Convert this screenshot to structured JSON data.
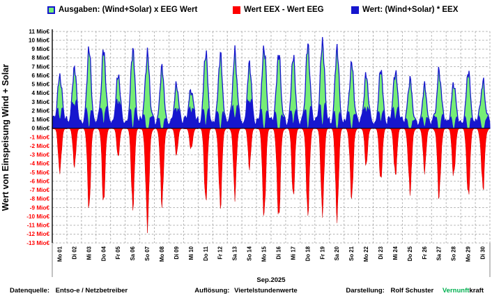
{
  "legend": [
    {
      "label": "Ausgaben: (Wind+Solar) x EEG Wert",
      "color": "#76EE76",
      "border": "#1616CE"
    },
    {
      "label": "Wert EEX - Wert EEG",
      "color": "#FE0000",
      "border": "#FE0000"
    },
    {
      "label": "Wert: (Wind+Solar) * EEX",
      "color": "#1616CE",
      "border": "#1616CE"
    }
  ],
  "y_axis": {
    "title": "Wert von Einspeisung Wind + Solar",
    "unit": "Mio€",
    "max": 11,
    "min": -13,
    "tick_step": 1,
    "positive_label_color": "#000000",
    "negative_label_color": "#FF0000"
  },
  "x_axis": {
    "title": "Sep.2025",
    "labels": [
      "Mo 01",
      "Di 02",
      "Mi 03",
      "Do 04",
      "Fr 05",
      "Sa 06",
      "So 07",
      "Mo 08",
      "Di 09",
      "Mi 10",
      "Do 11",
      "Fr 12",
      "Sa 13",
      "So 14",
      "Mo 15",
      "Di 16",
      "Mi 17",
      "Do 18",
      "Fr 19",
      "Sa 20",
      "So 21",
      "Mo 22",
      "Di 23",
      "Mi 24",
      "Do 25",
      "Fr 26",
      "Sa 27",
      "So 28",
      "Mo 29",
      "Di 30"
    ]
  },
  "footer": {
    "source_label": "Datenquelle:",
    "source": "Entso-e  / Netzbetreiber",
    "resolution_label": "Auflösung:",
    "resolution": "Viertelstundenwerte",
    "credit_label": "Darstellung:",
    "credit": "Rolf Schuster",
    "brand_green": "Vernunft",
    "brand_black": "kraft",
    "brand_green_color": "#00B050"
  },
  "chart_data": {
    "type": "area",
    "title": "",
    "xlabel": "Sep.2025",
    "ylabel": "Wert von Einspeisung Wind + Solar",
    "y_unit": "Mio€",
    "ylim": [
      -13,
      11
    ],
    "y_tick_step": 1,
    "grid": true,
    "legend_position": "top",
    "resolution": "Viertelstundenwerte",
    "x_categories": [
      "Mo 01",
      "Di 02",
      "Mi 03",
      "Do 04",
      "Fr 05",
      "Sa 06",
      "So 07",
      "Mo 08",
      "Di 09",
      "Mi 10",
      "Do 11",
      "Fr 12",
      "Sa 13",
      "So 14",
      "Mo 15",
      "Di 16",
      "Mi 17",
      "Do 18",
      "Fr 19",
      "Sa 20",
      "So 21",
      "Mo 22",
      "Di 23",
      "Mi 24",
      "Do 25",
      "Fr 26",
      "Sa 27",
      "So 28",
      "Mo 29",
      "Di 30"
    ],
    "series": [
      {
        "name": "Ausgaben: (Wind+Solar) x EEG Wert",
        "color": "#76EE76",
        "edge_color": "#1616CE",
        "daily_peak_mio_eur": [
          6.0,
          6.9,
          9.0,
          8.8,
          6.1,
          8.9,
          8.4,
          6.8,
          4.9,
          4.4,
          8.6,
          8.2,
          8.4,
          7.3,
          9.2,
          8.5,
          8.1,
          9.4,
          9.8,
          9.0,
          7.3,
          6.0,
          6.7,
          6.5,
          5.5,
          4.8,
          6.4,
          5.1,
          6.5,
          5.2
        ]
      },
      {
        "name": "Wert: (Wind+Solar) * EEX",
        "color": "#1616CE",
        "edge_color": "#1616CE",
        "daily_peak_mio_eur": [
          5.6,
          6.4,
          8.5,
          8.3,
          5.7,
          8.4,
          7.8,
          6.3,
          4.6,
          4.1,
          8.1,
          7.7,
          7.9,
          6.8,
          8.6,
          7.9,
          7.6,
          8.9,
          9.3,
          8.6,
          6.9,
          5.7,
          6.4,
          6.2,
          5.2,
          4.6,
          6.1,
          4.9,
          6.2,
          5.0
        ]
      },
      {
        "name": "Wert EEX - Wert EEG",
        "color": "#FE0000",
        "edge_color": "#D00000",
        "daily_min_mio_eur": [
          -5.0,
          -4.4,
          -9.1,
          -8.4,
          -3.3,
          -9.1,
          -10.9,
          -8.4,
          -3.0,
          -2.5,
          -8.4,
          -8.7,
          -7.4,
          -4.5,
          -10.1,
          -10.3,
          -7.7,
          -9.7,
          -9.6,
          -10.1,
          -7.8,
          -4.2,
          -6.0,
          -5.5,
          -7.1,
          -4.7,
          -7.6,
          -5.5,
          -7.8,
          -6.6
        ]
      }
    ],
    "grid_color": "#A6A6A6"
  }
}
